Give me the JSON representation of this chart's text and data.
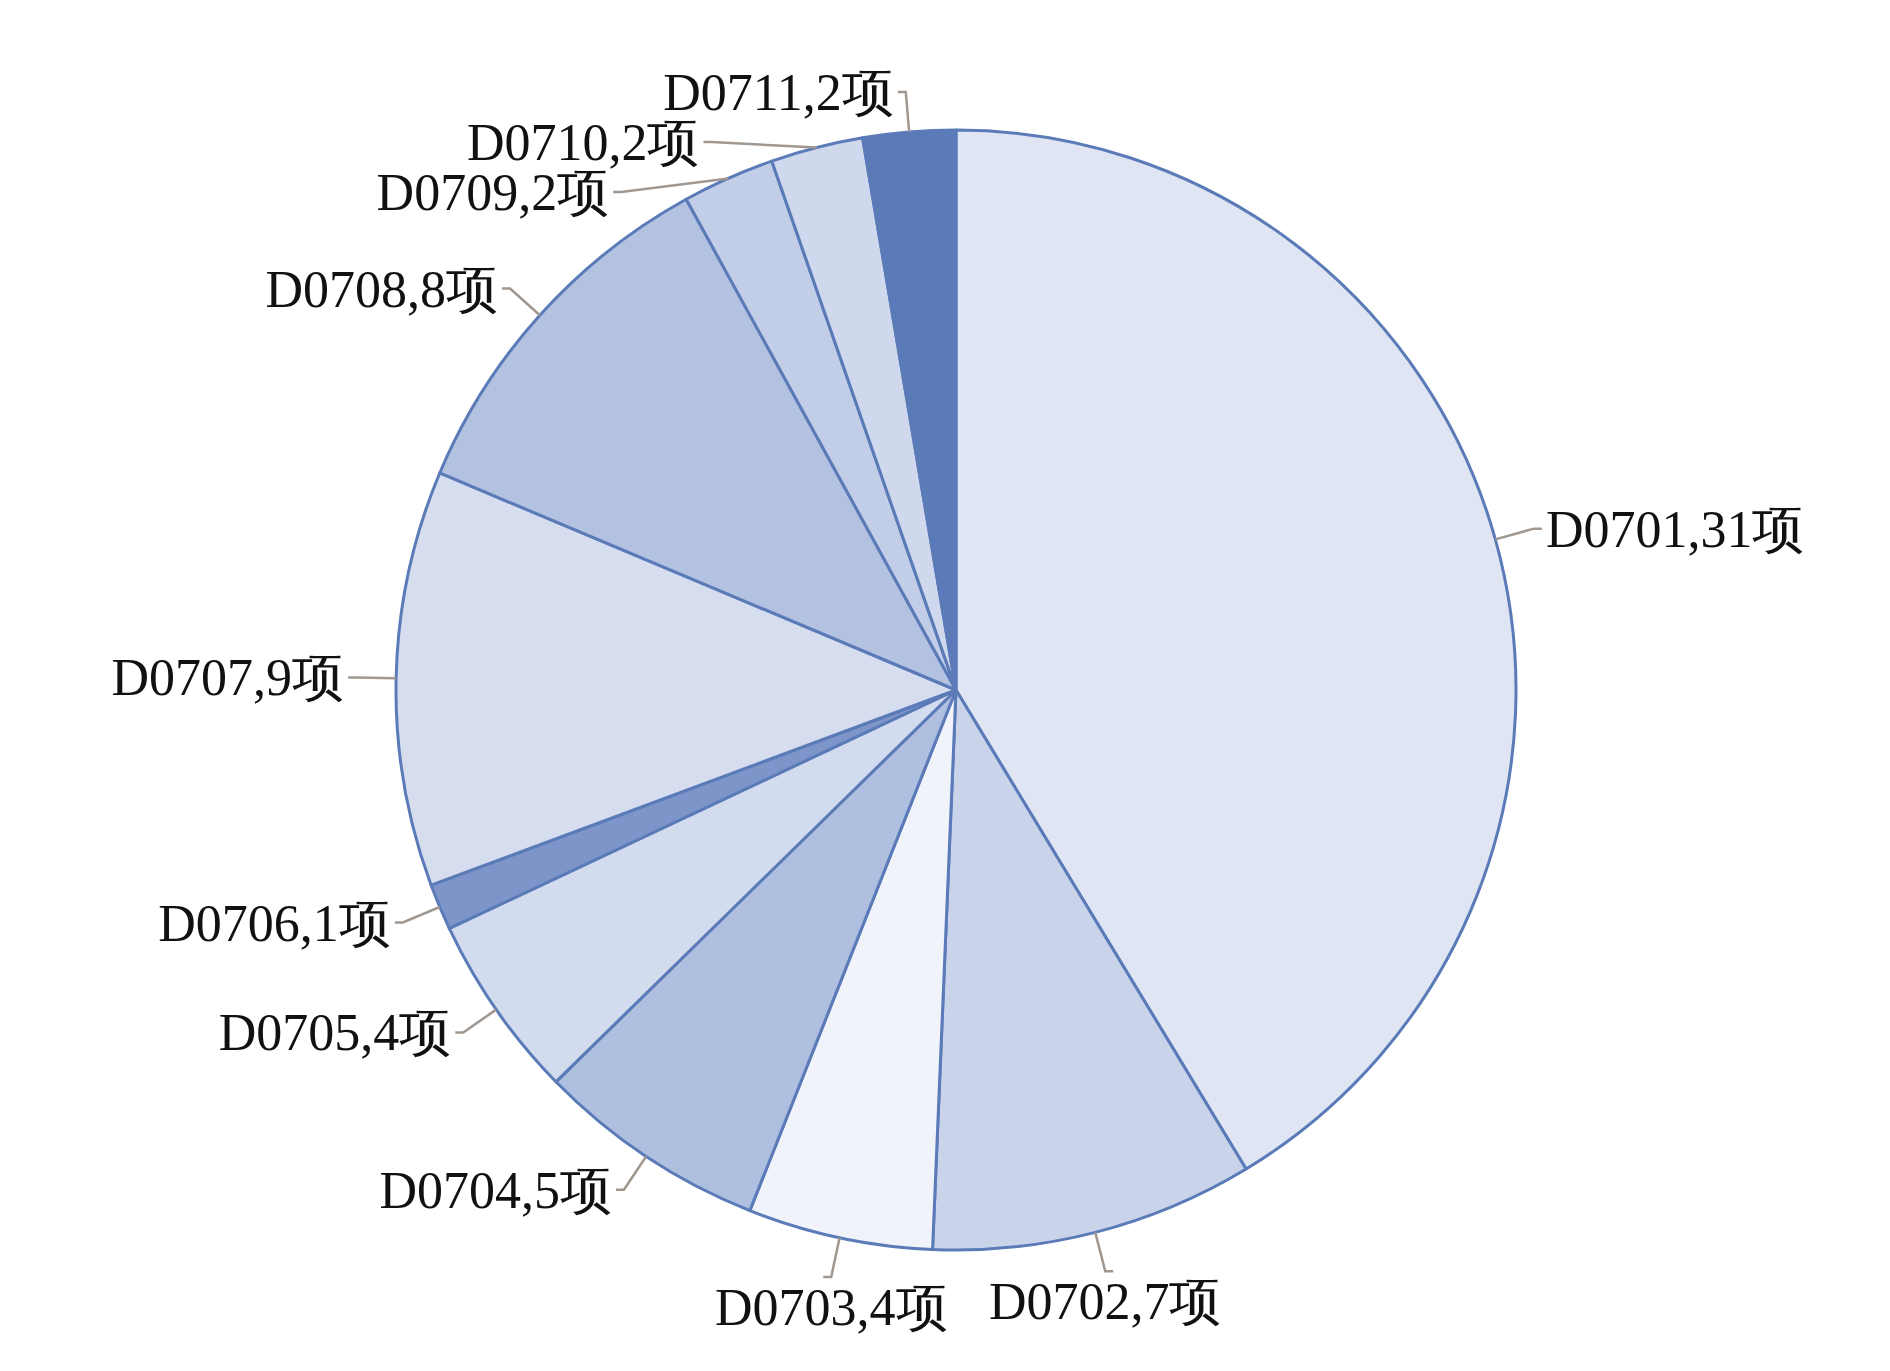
{
  "chart_data": {
    "type": "pie",
    "categories": [
      "D0701",
      "D0702",
      "D0703",
      "D0704",
      "D0705",
      "D0706",
      "D0707",
      "D0708",
      "D0709",
      "D0710",
      "D0711"
    ],
    "value_labels": [
      "31项",
      "7项",
      "4项",
      "5项",
      "4项",
      "1项",
      "9项",
      "8项",
      "2项",
      "2项",
      "2项"
    ],
    "values": [
      31,
      7,
      4,
      5,
      4,
      1,
      9,
      8,
      2,
      2,
      2
    ],
    "colors": [
      "#dfe5f3",
      "#c9d3ea",
      "#f0f3fa",
      "#aebfe0",
      "#d3dcef",
      "#7d95c8",
      "#d6ddef",
      "#b3c2e1",
      "#c2cee8",
      "#cfd8ed",
      "#5b7bb8"
    ]
  }
}
